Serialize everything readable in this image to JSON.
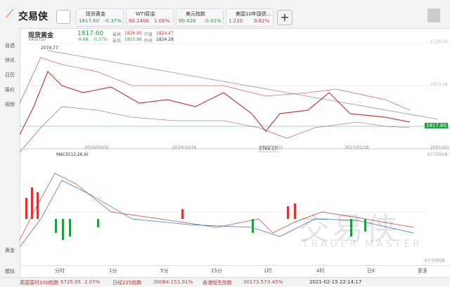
{
  "app": {
    "name": "交易侠"
  },
  "tabs": [
    {
      "name": "现货黄金",
      "price": "1817.60",
      "change": "-0.37%"
    },
    {
      "name": "WTI原油",
      "price": "60.2400",
      "change": "1.06%"
    },
    {
      "name": "美元指数",
      "price": "90.426",
      "change": "-0.01%"
    },
    {
      "name": "美国10年国债...",
      "price": "1.210",
      "change": "0.82%"
    }
  ],
  "sidebar": [
    "自选",
    "快讯",
    "日历",
    "报价",
    "视频"
  ],
  "sidebar_bottom": [
    "黄金",
    "模拟"
  ],
  "quote": {
    "name": "现货黄金",
    "code": "XAUUSD",
    "price": "1817.60",
    "change": "-6.68",
    "change_pct": "-0.37%",
    "high_label": "最高",
    "high": "1826.90",
    "open_label": "开盘",
    "open": "1824.47",
    "low_label": "最低",
    "low": "1815.96",
    "prev_label": "昨收",
    "prev": "1824.28"
  },
  "chart": {
    "max_label": "2074.77",
    "min_label": "1764.57",
    "axis_top": "2128.19",
    "axis_mid": "1913.18",
    "last": "1817.60",
    "dates": [
      "2020/09/02",
      "2020/10/16",
      "2020/12/01",
      "2021/01/18",
      "2021/02/"
    ],
    "macd": "MACD(12,26,9)",
    "macd_top": "67.03918",
    "macd_bottom": "-67.03918"
  },
  "periods": [
    "分时",
    "1分",
    "5分",
    "15分",
    "1时",
    "4时",
    "日K",
    "更多"
  ],
  "watermark": {
    "cn": "交易侠",
    "en": "TRADER MASTER"
  },
  "ticker": [
    {
      "name": "英国富时100指数",
      "price": "6725.95",
      "change": "2.07%"
    },
    {
      "name": "日经225指数",
      "price": "30084.15",
      "change": "1.91%"
    },
    {
      "name": "香港恒生指数",
      "price": "30173.57",
      "change": "0.45%"
    }
  ],
  "time": "2021-02-15 22:14:17"
}
